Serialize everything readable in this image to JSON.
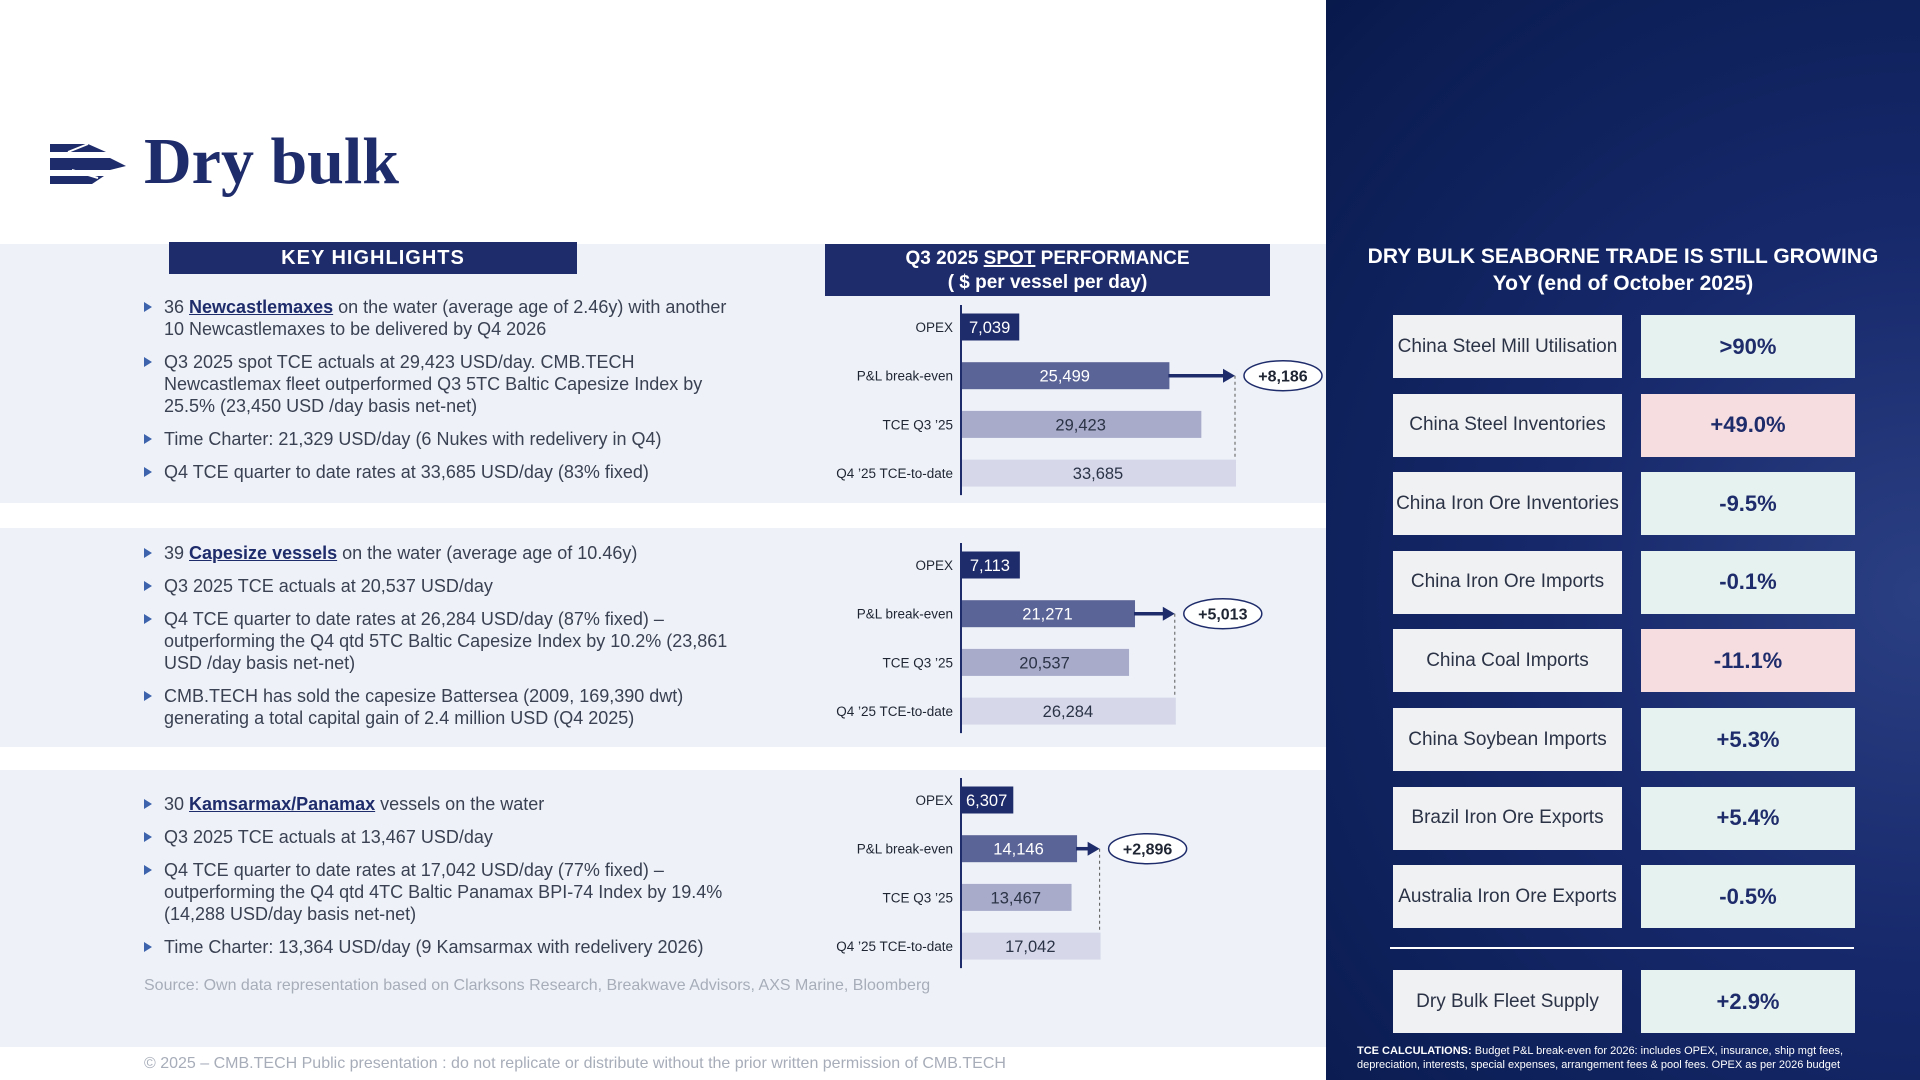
{
  "header": {
    "title": "Dry bulk"
  },
  "highlights": {
    "title": "KEY HIGHLIGHTS",
    "sections": [
      {
        "bullets": [
          {
            "before": "36 ",
            "link": "Newcastlemaxes",
            "after": " on the water (average age of 2.46y) with another 10 Newcastlemaxes to be delivered by Q4 2026"
          },
          {
            "text": "Q3 2025 spot TCE actuals at 29,423 USD/day. CMB.TECH Newcastlemax fleet outperformed Q3 5TC Baltic Capesize Index by 25.5% (23,450 USD /day basis net-net)"
          },
          {
            "text": "Time Charter: 21,329 USD/day (6 Nukes with redelivery in Q4)"
          },
          {
            "text": "Q4 TCE quarter to date rates at 33,685 USD/day (83% fixed)"
          }
        ]
      },
      {
        "bullets": [
          {
            "before": "39 ",
            "link": "Capesize vessels",
            "after": " on the water (average age of 10.46y)"
          },
          {
            "text": "Q3 2025 TCE actuals at 20,537 USD/day"
          },
          {
            "text": "Q4 TCE quarter to date rates at 26,284 USD/day (87% fixed) – outperforming the Q4 qtd 5TC Baltic Capesize Index by 10.2% (23,861 USD /day basis net-net)"
          },
          {
            "text": "CMB.TECH has sold the capesize Battersea (2009, 169,390 dwt) generating a total capital gain of 2.4 million USD (Q4 2025)"
          }
        ]
      },
      {
        "bullets": [
          {
            "before": "30 ",
            "link": "Kamsarmax/Panamax",
            "after": " vessels on the water"
          },
          {
            "text": "Q3 2025 TCE actuals at 13,467 USD/day"
          },
          {
            "text": "Q4 TCE quarter to date rates at 17,042 USD/day (77% fixed) – outperforming the Q4 qtd 4TC Baltic Panamax BPI-74 Index by 19.4% (14,288 USD/day basis net-net)"
          },
          {
            "text": "Time Charter: 13,364 USD/day (9 Kamsarmax with redelivery 2026)"
          }
        ]
      }
    ]
  },
  "performance": {
    "title_parts": [
      "Q3 2025 ",
      "SPOT",
      " PERFORMANCE"
    ],
    "subtitle": "( $ per vessel per day)",
    "categories": [
      "OPEX",
      "P&L break-even",
      "TCE Q3 ’25",
      "Q4 ’25 TCE-to-date"
    ],
    "colors": [
      "#1f2c6b",
      "#5b6497",
      "#a8abca",
      "#d6d8ea"
    ],
    "charts": [
      {
        "values": [
          7039,
          25499,
          29423,
          33685
        ],
        "value_labels": [
          "7,039",
          "25,499",
          "29,423",
          "33,685"
        ],
        "delta": {
          "value": 8186,
          "label": "+8,186"
        }
      },
      {
        "values": [
          7113,
          21271,
          20537,
          26284
        ],
        "value_labels": [
          "7,113",
          "21,271",
          "20,537",
          "26,284"
        ],
        "delta": {
          "value": 5013,
          "label": "+5,013"
        }
      },
      {
        "values": [
          6307,
          14146,
          13467,
          17042
        ],
        "value_labels": [
          "6,307",
          "14,146",
          "13,467",
          "17,042"
        ],
        "delta": {
          "value": 2896,
          "label": "+2,896"
        }
      }
    ]
  },
  "trade": {
    "title": "DRY BULK SEABORNE TRADE IS STILL GROWING",
    "subtitle": "YoY (end of October 2025)",
    "tone_colors": {
      "green": "#e6f2ef",
      "pink": "#f5dde0"
    },
    "rows": [
      {
        "label": "China Steel Mill Utilisation",
        "value": ">90%",
        "tone": "green"
      },
      {
        "label": "China Steel Inventories",
        "value": "+49.0%",
        "tone": "pink"
      },
      {
        "label": "China Iron Ore Inventories",
        "value": "-9.5%",
        "tone": "green"
      },
      {
        "label": "China Iron Ore Imports",
        "value": "-0.1%",
        "tone": "green"
      },
      {
        "label": "China Coal Imports",
        "value": "-11.1%",
        "tone": "pink"
      },
      {
        "label": "China Soybean Imports",
        "value": "+5.3%",
        "tone": "green"
      },
      {
        "label": "Brazil Iron Ore Exports",
        "value": "+5.4%",
        "tone": "green"
      },
      {
        "label": "Australia Iron Ore Exports",
        "value": "-0.5%",
        "tone": "green"
      }
    ],
    "supply": {
      "label": "Dry Bulk Fleet Supply",
      "value": "+2.9%",
      "tone": "green"
    }
  },
  "footnote": {
    "label": "TCE CALCULATIONS:",
    "text": "Budget P&L break-even for 2026: includes OPEX, insurance, ship mgt fees, depreciation, interests, special expenses, arrangement fees & pool fees. OPEX as per 2026 budget"
  },
  "source": "Source:  Own data representation based on Clarksons Research, Breakwave Advisors, AXS Marine, Bloomberg",
  "copyright": "© 2025 – CMB.TECH Public presentation : do not replicate or distribute without the prior written permission of CMB.TECH"
}
